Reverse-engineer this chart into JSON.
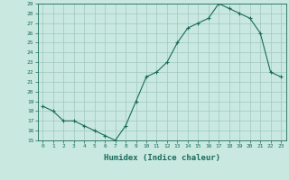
{
  "x": [
    0,
    1,
    2,
    3,
    4,
    5,
    6,
    7,
    8,
    9,
    10,
    11,
    12,
    13,
    14,
    15,
    16,
    17,
    18,
    19,
    20,
    21,
    22,
    23
  ],
  "y": [
    18.5,
    18.0,
    17.0,
    17.0,
    16.5,
    16.0,
    15.5,
    15.0,
    16.5,
    19.0,
    21.5,
    22.0,
    23.0,
    25.0,
    26.5,
    27.0,
    27.5,
    29.0,
    28.5,
    28.0,
    27.5,
    26.0,
    22.0,
    21.5
  ],
  "ylim": [
    15,
    29
  ],
  "yticks": [
    15,
    16,
    17,
    18,
    19,
    20,
    21,
    22,
    23,
    24,
    25,
    26,
    27,
    28,
    29
  ],
  "xlabel": "Humidex (Indice chaleur)",
  "line_color": "#1a6b5a",
  "marker_color": "#1a6b5a",
  "bg_color": "#c8e8e0",
  "grid_color": "#a0c8c0",
  "axis_color": "#1a6b5a"
}
